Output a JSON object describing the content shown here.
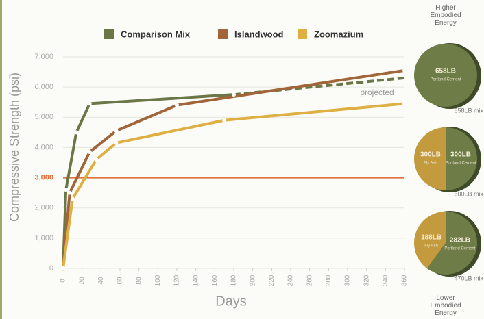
{
  "chart_data": [
    {
      "type": "line",
      "x_label": "Days",
      "y_label": "Compressive Strength (psi)",
      "xlim": [
        0,
        360
      ],
      "xticks": [
        0,
        20,
        40,
        60,
        80,
        100,
        120,
        140,
        160,
        180,
        200,
        220,
        240,
        260,
        280,
        300,
        320,
        340,
        360
      ],
      "ylim": [
        0,
        7000
      ],
      "yticks": [
        0,
        {
          "value": 1000,
          "label": "1,000"
        },
        {
          "value": 2000,
          "label": "2,000"
        },
        {
          "value": 3000,
          "label": "3,000"
        },
        {
          "value": 4000,
          "label": "4,000"
        },
        {
          "value": 5000,
          "label": "5,000"
        },
        {
          "value": 6000,
          "label": "6,000"
        },
        {
          "value": 7000,
          "label": "7,000"
        }
      ],
      "grid": true,
      "series": [
        {
          "name": "Comparison Mix",
          "color": "#6b7747",
          "x": [
            0,
            3,
            14,
            28,
            180
          ],
          "values": [
            0,
            2600,
            4500,
            5450,
            5750
          ]
        },
        {
          "name": "Islandwood",
          "color": "#a2653a",
          "x": [
            0,
            7,
            28,
            56,
            120,
            360
          ],
          "values": [
            0,
            2500,
            3850,
            4550,
            5400,
            6550
          ]
        },
        {
          "name": "Zoomazium",
          "color": "#deb043",
          "x": [
            0,
            10,
            35,
            56,
            170,
            360
          ],
          "values": [
            0,
            2300,
            3600,
            4150,
            4900,
            5450
          ]
        }
      ],
      "projection": {
        "label": "projected",
        "color": "#6b7747",
        "x": [
          180,
          360
        ],
        "values": [
          5750,
          6300
        ]
      },
      "reference_line": {
        "value": 3000,
        "color": "#e0703c"
      }
    },
    {
      "type": "pie",
      "categories": [
        "Portland Cement"
      ],
      "values": [
        658
      ],
      "value_labels": [
        "658LB"
      ],
      "colors": [
        "#6e7c48"
      ],
      "mix_label": "658LB mix"
    },
    {
      "type": "pie",
      "categories": [
        "Fly Ash",
        "Portland Cement"
      ],
      "values": [
        300,
        300
      ],
      "value_labels": [
        "300LB",
        "300LB"
      ],
      "colors": [
        "#c49a3e",
        "#6e7c48"
      ],
      "mix_label": "600LB mix"
    },
    {
      "type": "pie",
      "categories": [
        "Fly Ash",
        "Portland Cement"
      ],
      "values": [
        188,
        282
      ],
      "value_labels": [
        "188LB",
        "282LB"
      ],
      "colors": [
        "#c49a3e",
        "#6e7c48"
      ],
      "mix_label": "470LB mix"
    }
  ],
  "scale_labels": {
    "top": "Higher Embodied Energy",
    "bottom": "Lower Embodied Energy"
  }
}
